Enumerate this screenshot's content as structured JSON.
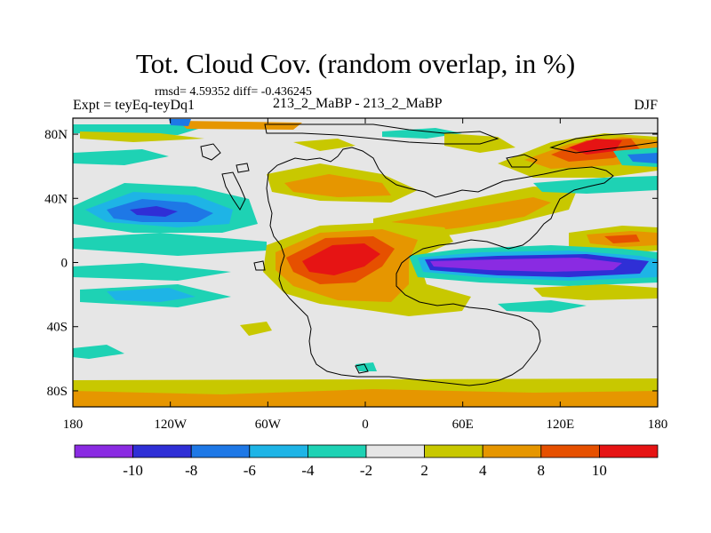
{
  "title": "Tot. Cloud Cov. (random overlap, in %)",
  "stats_line": "rmsd= 4.59352  diff= -0.436245",
  "experiment": "Expt = teyEq-teyDq1",
  "case_label": "213_2_MaBP - 213_2_MaBP",
  "season": "DJF",
  "lon_ticks": [
    {
      "lon": -180,
      "label": "180"
    },
    {
      "lon": -120,
      "label": "120W"
    },
    {
      "lon": -60,
      "label": "60W"
    },
    {
      "lon": 0,
      "label": "0"
    },
    {
      "lon": 60,
      "label": "60E"
    },
    {
      "lon": 120,
      "label": "120E"
    },
    {
      "lon": 180,
      "label": "180"
    }
  ],
  "lat_ticks": [
    {
      "lat": 80,
      "label": "80N"
    },
    {
      "lat": 40,
      "label": "40N"
    },
    {
      "lat": 0,
      "label": "0"
    },
    {
      "lat": -40,
      "label": "40S"
    },
    {
      "lat": -80,
      "label": "80S"
    }
  ],
  "colorbar": {
    "colors": [
      "#8a2be2",
      "#2f2fd6",
      "#1e78e6",
      "#1eb4e6",
      "#1ed2b4",
      "#e6e6e6",
      "#c8c800",
      "#e69600",
      "#e65000",
      "#e61414"
    ],
    "labels": [
      "-10",
      "-8",
      "-6",
      "-4",
      "-2",
      "2",
      "4",
      "8",
      "10"
    ]
  }
}
